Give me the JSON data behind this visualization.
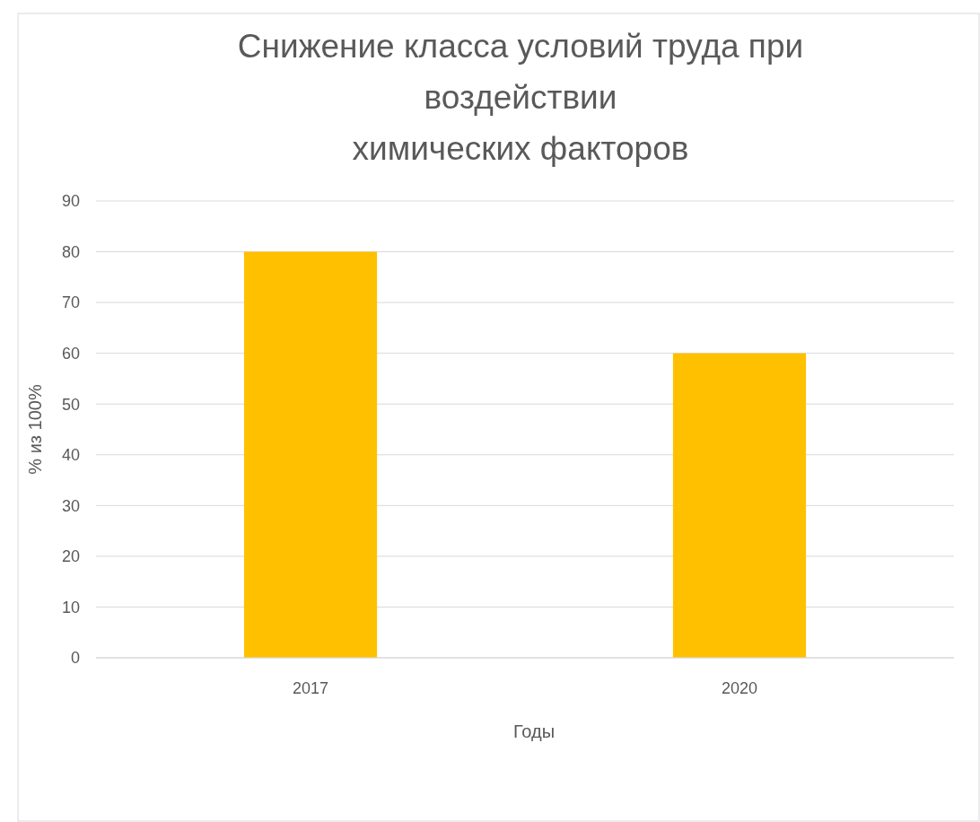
{
  "chart_data": {
    "type": "bar",
    "title": "Снижение класса условий труда при воздействии\nхимических факторов",
    "xlabel": "Годы",
    "ylabel": "% из 100%",
    "categories": [
      "2017",
      "2020"
    ],
    "values": [
      80,
      60
    ],
    "color": "#ffc000",
    "ylim": [
      0,
      90
    ],
    "yticks": [
      0,
      10,
      20,
      30,
      40,
      50,
      60,
      70,
      80,
      90
    ],
    "grid": "y"
  }
}
